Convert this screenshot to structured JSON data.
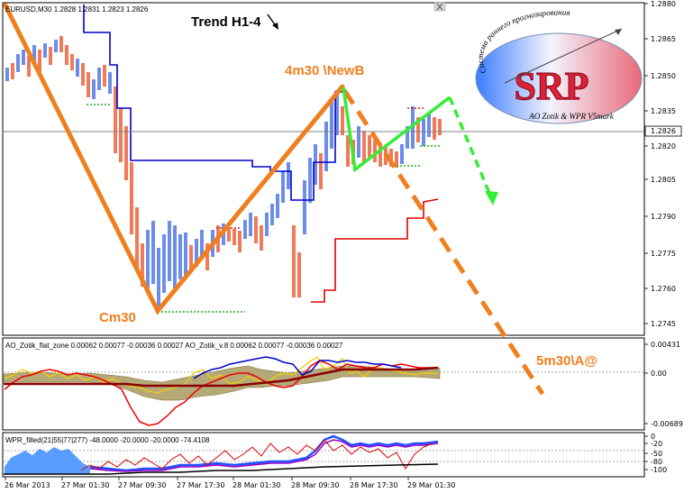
{
  "symbol_header": "EURUSD,M30  1.2828 1.2831 1.2823 1.2826",
  "annotations": {
    "trend": "Trend H1-4",
    "top": "4m30 \\NewB",
    "bottom": "Cm30",
    "right": "5m30\\A@"
  },
  "logo": {
    "letters": "SRP",
    "arc_text": "Система раннего прогнозирования",
    "footer": "AO Zotik & WPR V5mark"
  },
  "price_axis": [
    "1.2880",
    "1.2865",
    "1.2850",
    "1.2835",
    "1.2820",
    "1.2805",
    "1.2790",
    "1.2775",
    "1.2760",
    "1.2745"
  ],
  "current_price": "1.2826",
  "ao_panel": {
    "header": "AO_Zotik_flat_zone 0.00062 0.00077 -0.00036 0.00027   AO_Zotik_v.8 0.00062 0.00077 -0.00036 0.00027",
    "axis": [
      "0.00431",
      "0.00",
      "-0.00689"
    ]
  },
  "wpr_panel": {
    "header": "WPR_filled(21|55|77|277)  -48.0000 -20.0000 -20.0000 -74.4108",
    "axis": [
      "0",
      "-20",
      "-50",
      "-80",
      "-100"
    ]
  },
  "time_axis": [
    "26 Mar 2013",
    "27 Mar 01:30",
    "27 Mar 09:30",
    "27 Mar 17:30",
    "28 Mar 01:30",
    "28 Mar 09:30",
    "28 Mar 17:30",
    "29 Mar 01:30"
  ],
  "colors": {
    "bull": "#6d8ee8",
    "bear": "#f07a5a",
    "trend": "#f07f1e",
    "green": "#33ee33",
    "blue_line": "#0000cc",
    "red_line": "#dd0000"
  },
  "icons": [
    "down-arrow-icon",
    "close-icon"
  ]
}
